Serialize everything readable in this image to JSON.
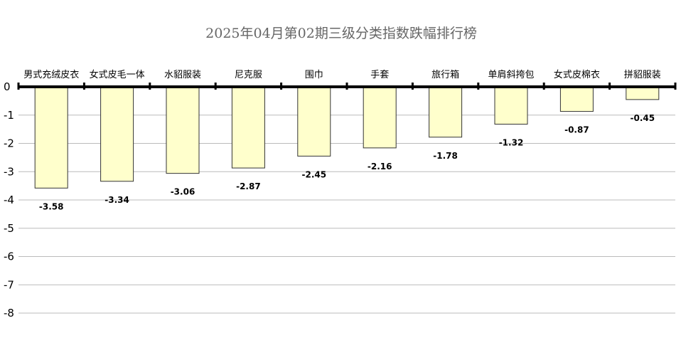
{
  "chart_data": {
    "type": "bar",
    "title": "2025年04月第02期三级分类指数跌幅排行榜",
    "categories": [
      "男式充绒皮衣",
      "女式皮毛一体",
      "水貂服装",
      "尼克服",
      "围巾",
      "手套",
      "旅行箱",
      "单肩斜挎包",
      "女式皮棉衣",
      "拼貂服装"
    ],
    "values": [
      -3.58,
      -3.34,
      -3.06,
      -2.87,
      -2.45,
      -2.16,
      -1.78,
      -1.32,
      -0.87,
      -0.45
    ],
    "value_labels": [
      "-3.58",
      "-3.34",
      "-3.06",
      "-2.87",
      "-2.45",
      "-2.16",
      "-1.78",
      "-1.32",
      "-0.87",
      "-0.45"
    ],
    "ylim": [
      -8,
      0
    ],
    "yticks": [
      "0",
      "-1",
      "-2",
      "-3",
      "-4",
      "-5",
      "-6",
      "-7",
      "-8"
    ],
    "xlabel": "",
    "ylabel": "",
    "grid": true,
    "category_axis_position": "top",
    "bar_color": "#FFFFCC",
    "bar_border_color": "#333333",
    "grid_color": "#BBBBBB",
    "axis_color": "#000000"
  }
}
